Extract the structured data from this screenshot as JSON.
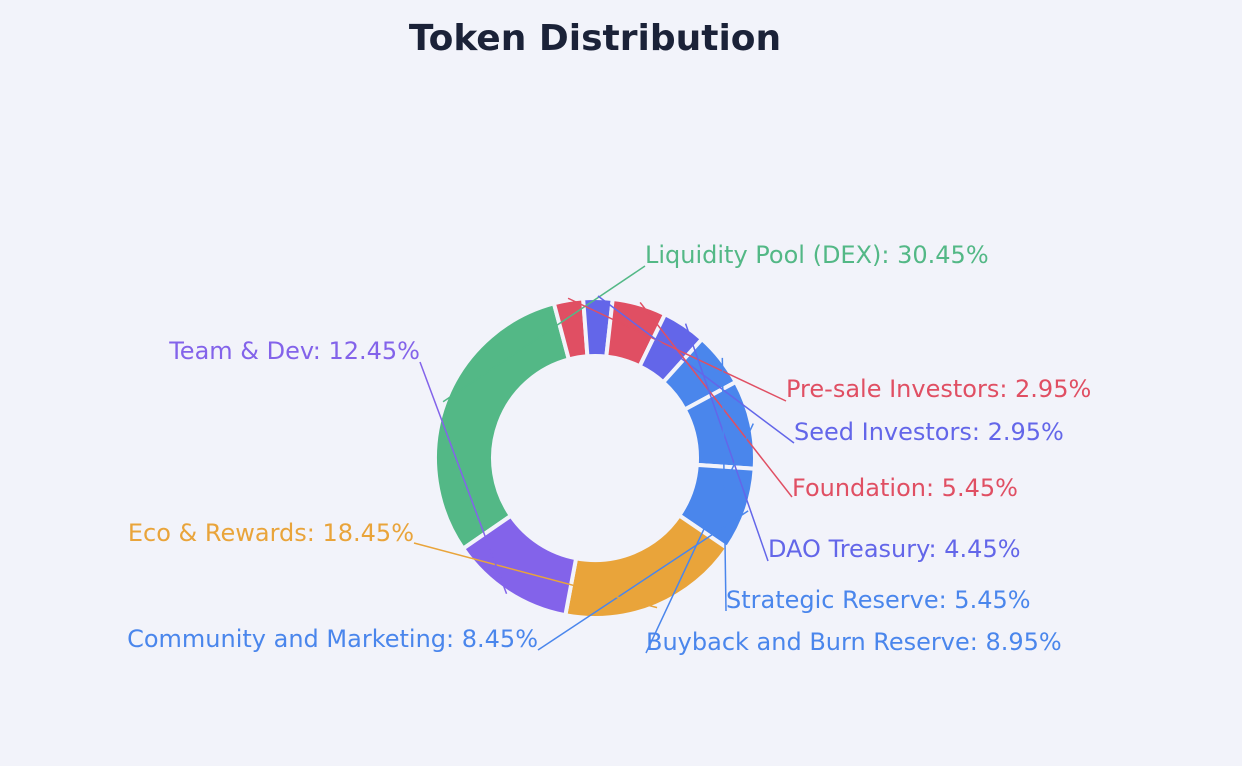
{
  "chart_data": {
    "type": "pie",
    "title": "Token Distribution",
    "hole": true,
    "slices": [
      {
        "label": "Liquidity Pool (DEX)",
        "value": 30.45,
        "value_label": "30.45%",
        "color": "#53b886"
      },
      {
        "label": "Pre-sale Investors",
        "value": 2.95,
        "value_label": "2.95%",
        "color": "#e04f63"
      },
      {
        "label": "Seed Investors",
        "value": 2.95,
        "value_label": "2.95%",
        "color": "#6366e9"
      },
      {
        "label": "Foundation",
        "value": 5.45,
        "value_label": "5.45%",
        "color": "#e04f63"
      },
      {
        "label": "DAO Treasury",
        "value": 4.45,
        "value_label": "4.45%",
        "color": "#6366e9"
      },
      {
        "label": "Strategic Reserve",
        "value": 5.45,
        "value_label": "5.45%",
        "color": "#4a86ec"
      },
      {
        "label": "Buyback and Burn Reserve",
        "value": 8.95,
        "value_label": "8.95%",
        "color": "#4a86ec"
      },
      {
        "label": "Community and Marketing",
        "value": 8.45,
        "value_label": "8.45%",
        "color": "#4a86ec"
      },
      {
        "label": "Eco & Rewards",
        "value": 18.45,
        "value_label": "18.45%",
        "color": "#e9a43a"
      },
      {
        "label": "Team & Dev",
        "value": 12.45,
        "value_label": "12.45%",
        "color": "#8363ea"
      }
    ]
  }
}
